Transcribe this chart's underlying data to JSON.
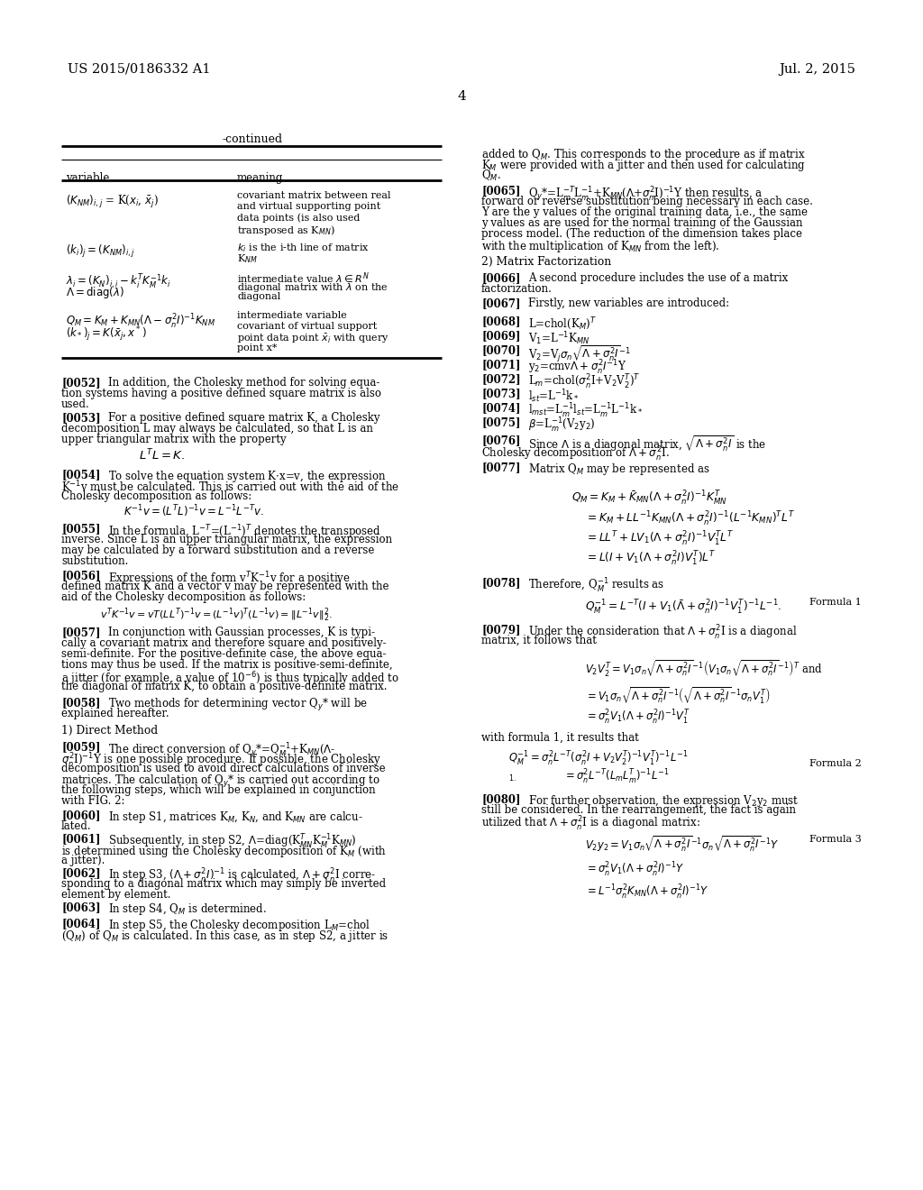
{
  "page_number": "4",
  "header_left": "US 2015/0186332 A1",
  "header_right": "Jul. 2, 2015",
  "background_color": "#ffffff",
  "text_color": "#000000",
  "fig_width": 10.24,
  "fig_height": 13.2,
  "dpi": 100
}
